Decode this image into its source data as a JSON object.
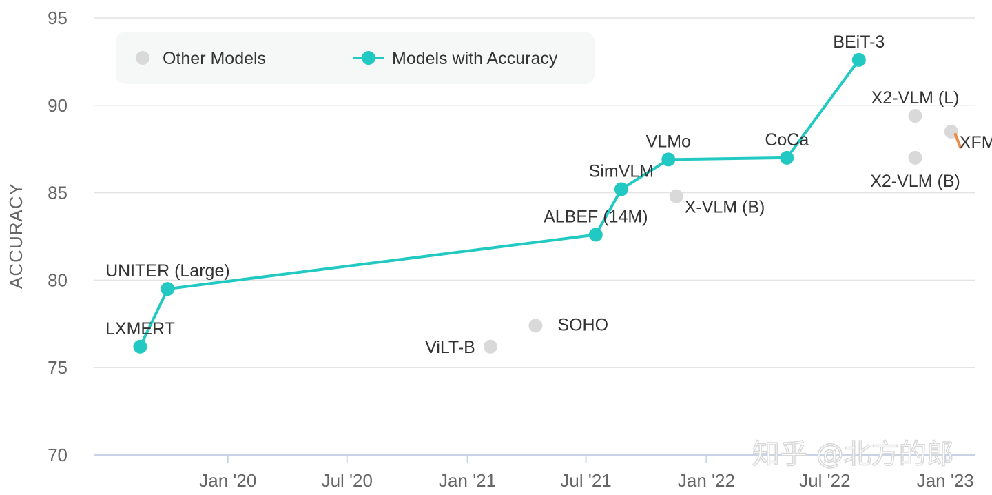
{
  "chart_data": {
    "type": "line",
    "ylabel": "ACCURACY",
    "xlabel": "",
    "ylim": [
      70,
      95
    ],
    "xlim": [
      "2019-06-10",
      "2023-02-15"
    ],
    "y_ticks": [
      70,
      75,
      80,
      85,
      90,
      95
    ],
    "x_ticks": [
      {
        "date": "2020-01-01",
        "label": "Jan '20"
      },
      {
        "date": "2020-07-01",
        "label": "Jul '20"
      },
      {
        "date": "2021-01-01",
        "label": "Jan '21"
      },
      {
        "date": "2021-07-01",
        "label": "Jul '21"
      },
      {
        "date": "2022-01-01",
        "label": "Jan '22"
      },
      {
        "date": "2022-07-01",
        "label": "Jul '22"
      },
      {
        "date": "2023-01-01",
        "label": "Jan '23"
      }
    ],
    "grid": true,
    "legend_position": "top-left",
    "legend": [
      {
        "name": "Other Models",
        "color": "#d9d9d9",
        "marker": "circle"
      },
      {
        "name": "Models with Accuracy",
        "color": "#21c9c2",
        "marker": "line-circle"
      }
    ],
    "series": [
      {
        "name": "Models with Accuracy",
        "color": "#21c9c2",
        "points": [
          {
            "x": "2019-08-20",
            "y": 76.2,
            "label": "LXMERT",
            "label_pos": "above"
          },
          {
            "x": "2019-10-01",
            "y": 79.5,
            "label": "UNITER (Large)",
            "label_pos": "above"
          },
          {
            "x": "2021-07-16",
            "y": 82.6,
            "label": "ALBEF (14M)",
            "label_pos": "above"
          },
          {
            "x": "2021-08-24",
            "y": 85.2,
            "label": "SimVLM",
            "label_pos": "above"
          },
          {
            "x": "2021-11-04",
            "y": 86.9,
            "label": "VLMo",
            "label_pos": "above"
          },
          {
            "x": "2022-05-04",
            "y": 87.0,
            "label": "CoCa",
            "label_pos": "above"
          },
          {
            "x": "2022-08-22",
            "y": 92.6,
            "label": "BEiT-3",
            "label_pos": "above"
          }
        ]
      },
      {
        "name": "Other Models",
        "color": "#d9d9d9",
        "points": [
          {
            "x": "2021-02-05",
            "y": 76.2,
            "label": "ViLT-B",
            "label_pos": "left"
          },
          {
            "x": "2021-04-15",
            "y": 77.4,
            "label": "SOHO",
            "label_pos": "right"
          },
          {
            "x": "2021-11-16",
            "y": 84.8,
            "label": "X-VLM (B)",
            "label_pos": "below-right"
          },
          {
            "x": "2022-11-16",
            "y": 89.4,
            "label": "X2-VLM (L)",
            "label_pos": "above"
          },
          {
            "x": "2022-11-16",
            "y": 87.0,
            "label": "X2-VLM (B)",
            "label_pos": "below"
          },
          {
            "x": "2023-01-10",
            "y": 88.5,
            "label": "XFM",
            "label_pos": "below-right"
          }
        ]
      }
    ],
    "segments": [
      {
        "color": "#ee8a4a",
        "from": {
          "x": "2023-01-10",
          "y": 88.5
        },
        "to": {
          "x": "2023-01-24",
          "y": 87.6
        }
      }
    ]
  },
  "watermark": "知乎 @北方的郎"
}
